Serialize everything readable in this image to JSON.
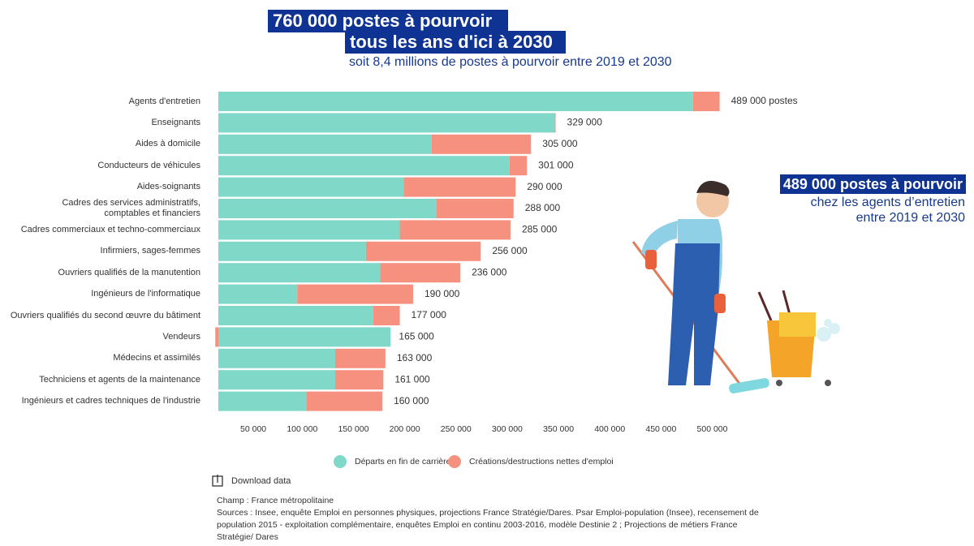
{
  "chart_data": {
    "type": "stacked-barh",
    "title": [
      "760 000 postes à pourvoir",
      "tous les ans d'ici à 2030"
    ],
    "subtitle": "soit 8,4 millions de postes à pourvoir entre 2019 et 2030",
    "annotation": [
      "489 000 postes à pourvoir",
      "chez les agents d’entretien",
      "entre 2019 et 2030"
    ],
    "categories": [
      "Agents d'entretien",
      "Enseignants",
      "Aides à domicile",
      "Conducteurs de véhicules",
      "Aides-soignants",
      "Cadres des services administratifs,\ncomptables et financiers",
      "Cadres commerciaux et techno-commerciaux",
      "Infirmiers, sages-femmes",
      "Ouvriers qualifiés de la manutention",
      "Ingénieurs de l'informatique",
      "Ouvriers qualifiés du second œuvre du bâtiment",
      "Vendeurs",
      "Médecins et assimilés",
      "Techniciens et agents de la maintenance",
      "Ingénieurs et cadres techniques de l'industrie"
    ],
    "series": [
      {
        "name": "Départs en fin de carrière",
        "color": "#7fd8c8",
        "values": [
          463000,
          328000,
          208000,
          284000,
          181000,
          213000,
          177000,
          144000,
          158000,
          77000,
          151000,
          168000,
          114000,
          114000,
          86000
        ]
      },
      {
        "name": "Créations/destructions nettes d'emploi",
        "color": "#f7917f",
        "values": [
          26000,
          1000,
          97000,
          17000,
          109000,
          75000,
          108000,
          112000,
          78000,
          113000,
          26000,
          -3000,
          49000,
          47000,
          74000
        ]
      }
    ],
    "totals": [
      489000,
      329000,
      305000,
      301000,
      290000,
      288000,
      285000,
      256000,
      236000,
      190000,
      177000,
      165000,
      163000,
      161000,
      160000
    ],
    "total_labels": [
      "489 000 postes",
      "329 000",
      "305 000",
      "301 000",
      "290 000",
      "288 000",
      "285 000",
      "256 000",
      "236 000",
      "190 000",
      "177 000",
      "165 000",
      "163 000",
      "161 000",
      "160 000"
    ],
    "xlim": [
      0,
      500000
    ],
    "xticks": [
      {
        "value": 50000,
        "label": "50 000"
      },
      {
        "value": 100000,
        "label": "100 000"
      },
      {
        "value": 150000,
        "label": "150 000"
      },
      {
        "value": 200000,
        "label": "200 000"
      },
      {
        "value": 250000,
        "label": "250 000"
      },
      {
        "value": 300000,
        "label": "300 000"
      },
      {
        "value": 350000,
        "label": "350 000"
      },
      {
        "value": 400000,
        "label": "400 000"
      },
      {
        "value": 450000,
        "label": "450 000"
      },
      {
        "value": 500000,
        "label": "500 000"
      }
    ],
    "download": "Download data",
    "notes": [
      "Champ : France métropolitaine",
      "Sources : Insee, enquête Emploi en personnes physiques, projections France Stratégie/Dares. Psar Emploi-population (Insee), recensement de population 2015 - exploitation complémentaire, enquêtes Emploi en continu 2003-2016, modèle Destinie 2 ; Projections de métiers France Stratégie/ Dares"
    ]
  }
}
